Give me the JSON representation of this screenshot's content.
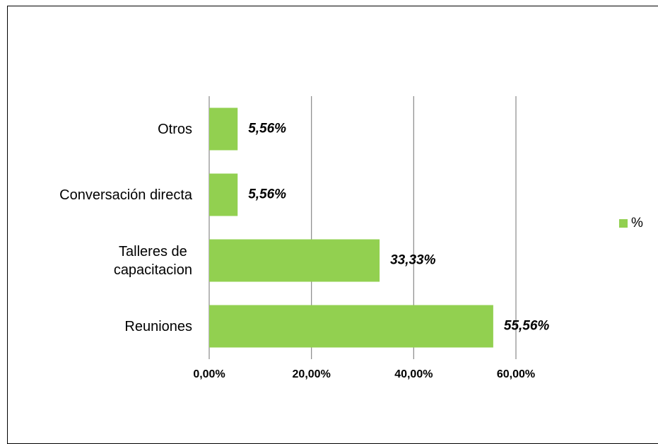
{
  "chart_data": {
    "type": "bar",
    "orientation": "horizontal",
    "categories": [
      "Otros",
      "Conversación directa",
      "Talleres de\ncapacitacion",
      "Reuniones"
    ],
    "series": [
      {
        "name": "%",
        "color": "#92d050",
        "values": [
          5.56,
          5.56,
          33.33,
          55.56
        ],
        "value_labels": [
          "5,56%",
          "5,56%",
          "33,33%",
          "55,56%"
        ]
      }
    ],
    "xlim": [
      0,
      60
    ],
    "xticks": [
      {
        "value": 0,
        "label": "0,00%"
      },
      {
        "value": 20,
        "label": "20,00%"
      },
      {
        "value": 40,
        "label": "40,00%"
      },
      {
        "value": 60,
        "label": "60,00%"
      }
    ],
    "grid": true,
    "legend": "right"
  }
}
